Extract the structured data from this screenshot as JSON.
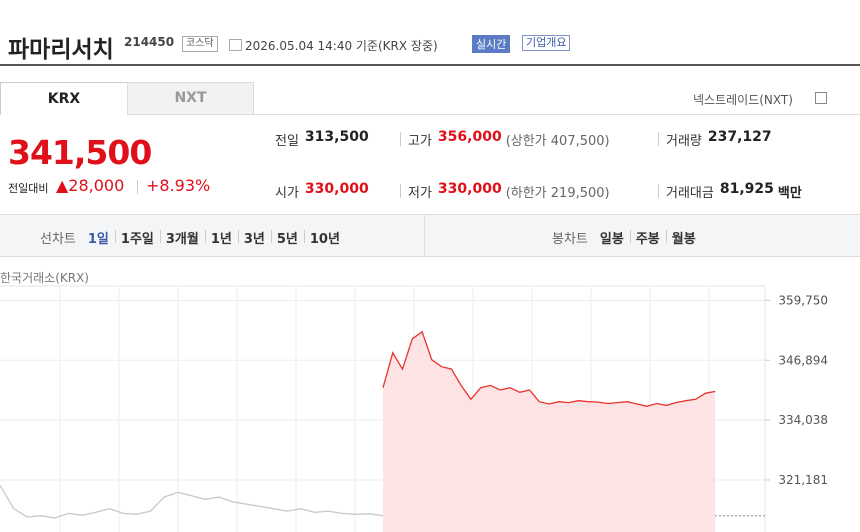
{
  "header": {
    "title": "파마리서치",
    "code": "214450",
    "market": "코스닥",
    "timestamp": "2026.05.04 14:40 기준(KRX 장중)",
    "realtime": "실시간",
    "company_info": "기업개요"
  },
  "tabs": [
    "KRX",
    "NXT"
  ],
  "nxt_link": "넥스트레이드(NXT)",
  "price": {
    "current": "341,500",
    "change_label": "전일대비",
    "change": "▲28,000",
    "change_rate": "+8.93%"
  },
  "stats": [
    {
      "label": "전일",
      "value": "313,500"
    },
    {
      "label": "고가",
      "value": "356,000",
      "sub": "(상한가 407,500)"
    },
    {
      "label": "거래량",
      "value": "237,127"
    },
    {
      "label": "시가",
      "value": "330,000"
    },
    {
      "label": "저가",
      "value": "330,000",
      "sub": "(하한가 219,500)"
    },
    {
      "label": "거래대금",
      "value": "81,925",
      "unit": "백만"
    }
  ],
  "periods": {
    "line_label": "선차트",
    "line_options": [
      "1일",
      "1주일",
      "3개월",
      "1년",
      "3년",
      "5년",
      "10년"
    ],
    "candle_label": "봉차트",
    "candle_options": [
      "일봉",
      "주봉",
      "월봉"
    ]
  },
  "chart_data": {
    "type": "line",
    "subtitle": "한국거래소(KRX)",
    "series": [
      {
        "name": "prev",
        "color": "#c8c8c8",
        "x": [
          -392,
          -378,
          -364,
          -350,
          -336,
          -322,
          -308,
          -294,
          -280,
          -266,
          -252,
          -238,
          -224,
          -210,
          -196,
          -182,
          -168,
          -154,
          -140,
          -126,
          -112,
          -98,
          -84,
          -70,
          -56,
          -42,
          -28,
          -14,
          0
        ],
        "values": [
          320000,
          315000,
          313200,
          313500,
          313000,
          314000,
          313600,
          314200,
          315000,
          314000,
          313800,
          314500,
          317500,
          318500,
          317800,
          317000,
          317500,
          316500,
          316000,
          315500,
          315000,
          314500,
          315000,
          314200,
          314500,
          314000,
          313800,
          313900,
          313500
        ]
      },
      {
        "name": "today",
        "color": "#e8332f",
        "x": [
          0,
          10,
          20,
          30,
          40,
          50,
          60,
          70,
          80,
          90,
          100,
          110,
          120,
          130,
          140,
          150,
          160,
          170,
          180,
          190,
          200,
          210,
          220,
          230,
          240,
          250,
          260,
          270,
          280,
          290,
          300,
          310,
          320,
          330,
          340
        ],
        "values": [
          341000,
          348500,
          345000,
          351500,
          353000,
          347000,
          345500,
          345000,
          341500,
          338500,
          341000,
          341500,
          340500,
          341000,
          340000,
          340500,
          338000,
          337500,
          338000,
          337800,
          338200,
          338000,
          337900,
          337600,
          337800,
          338000,
          337500,
          337000,
          337600,
          337200,
          337800,
          338200,
          338500,
          339800,
          340200
        ]
      }
    ],
    "baseline": 313500,
    "xlim": [
      -392,
      391
    ],
    "ylim": [
      310000,
      368000
    ],
    "yticks": [
      {
        "value": 359750,
        "label": "359,750"
      },
      {
        "value": 346894,
        "label": "346,894"
      },
      {
        "value": 334038,
        "label": "334,038"
      },
      {
        "value": 321181,
        "label": "321,181"
      }
    ]
  }
}
